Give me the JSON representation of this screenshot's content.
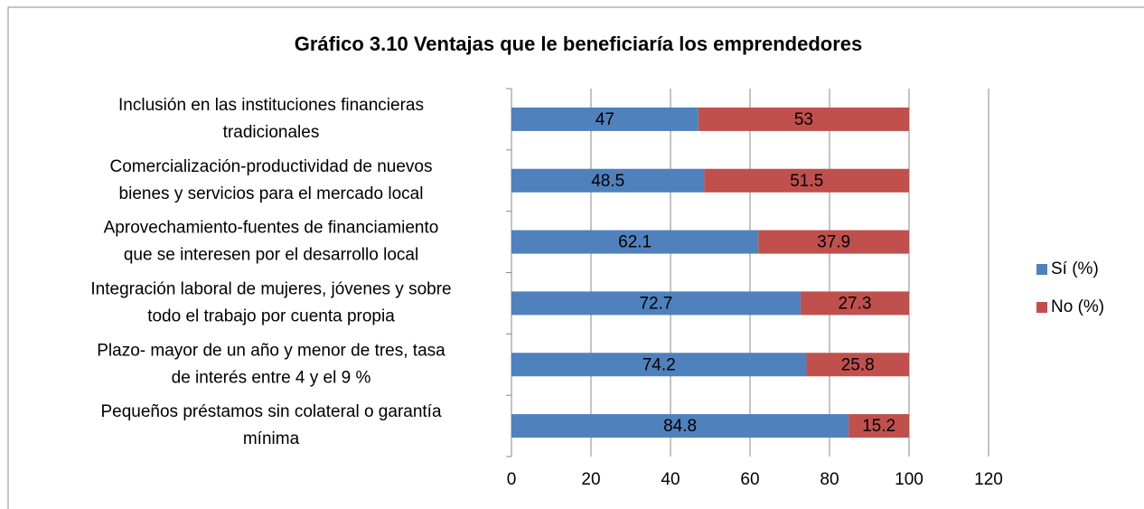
{
  "chart_data": {
    "type": "stacked-barh",
    "title": "Gráfico 3.10 Ventajas que le beneficiaría los emprendedores",
    "categories": [
      [
        "Inclusión en las instituciones financieras",
        "tradicionales"
      ],
      [
        "Comercialización-productividad de nuevos",
        "bienes y servicios para el mercado local"
      ],
      [
        "Aprovechamiento-fuentes de financiamiento",
        "que se interesen por el desarrollo local"
      ],
      [
        "Integración laboral de mujeres, jóvenes y sobre",
        "todo el trabajo por cuenta propia"
      ],
      [
        "Plazo- mayor de un año y menor de tres, tasa",
        "de interés entre 4 y el 9 %"
      ],
      [
        "Pequeños préstamos sin colateral o garantía",
        "mínima"
      ]
    ],
    "series": [
      {
        "name": "Sí (%)",
        "color": "#4f81bd",
        "values": [
          47,
          48.5,
          62.1,
          72.7,
          74.2,
          84.8
        ]
      },
      {
        "name": "No (%)",
        "color": "#c0504d",
        "values": [
          53,
          51.5,
          37.9,
          27.3,
          25.8,
          15.2
        ]
      }
    ],
    "xlim": [
      0,
      120
    ],
    "xticks": [
      0,
      20,
      40,
      60,
      80,
      100,
      120
    ],
    "grid": true,
    "legend": "right"
  }
}
